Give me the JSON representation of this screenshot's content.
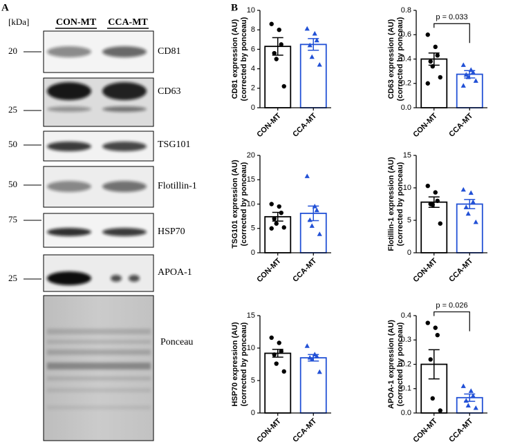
{
  "panel_a": {
    "label": "A",
    "kda": "[kDa]",
    "lanes": [
      "CON-MT",
      "CCA-MT"
    ],
    "blots": [
      {
        "name": "CD81",
        "mw": "20"
      },
      {
        "name": "CD63",
        "mw": "25"
      },
      {
        "name": "TSG101",
        "mw": "50"
      },
      {
        "name": "Flotillin-1",
        "mw": "50"
      },
      {
        "name": "HSP70",
        "mw": "75"
      },
      {
        "name": "APOA-1",
        "mw": "25"
      },
      {
        "name": "Ponceau"
      }
    ]
  },
  "panel_b_label": "B",
  "chart_data": [
    {
      "type": "bar",
      "ylabel": [
        "CD81 expression (AU)",
        "(corrected by ponceau)"
      ],
      "categories": [
        "CON-MT",
        "CCA-MT"
      ],
      "values": [
        6.3,
        6.5
      ],
      "errors": [
        0.9,
        0.6
      ],
      "points": [
        [
          8.6,
          8.0,
          6.5,
          5.6,
          5.0,
          2.2
        ],
        [
          8.1,
          7.6,
          6.9,
          6.4,
          5.2,
          4.4
        ]
      ],
      "colors": [
        "#000000",
        "#2251d6"
      ],
      "markers": [
        "circle",
        "triangle"
      ],
      "ylim": [
        0,
        10
      ],
      "yticks": [
        0,
        2,
        4,
        6,
        8,
        10
      ]
    },
    {
      "type": "bar",
      "ylabel": [
        "CD63 expression (AU)",
        "(corrected by ponceau)"
      ],
      "categories": [
        "CON-MT",
        "CCA-MT"
      ],
      "values": [
        0.4,
        0.275
      ],
      "errors": [
        0.05,
        0.03
      ],
      "points": [
        [
          0.6,
          0.5,
          0.43,
          0.38,
          0.34,
          0.25,
          0.2
        ],
        [
          0.35,
          0.31,
          0.29,
          0.27,
          0.25,
          0.22,
          0.18
        ]
      ],
      "colors": [
        "#000000",
        "#2251d6"
      ],
      "markers": [
        "circle",
        "triangle"
      ],
      "ylim": [
        0,
        0.8
      ],
      "yticks": [
        {
          "value": 0,
          "label": "0.0"
        },
        0.2,
        0.4,
        0.6,
        0.8
      ],
      "annotation": "p = 0.033"
    },
    {
      "type": "bar",
      "ylabel": [
        "TSG101 expression (AU)",
        "(corrected by ponceau)"
      ],
      "categories": [
        "CON-MT",
        "CCA-MT"
      ],
      "values": [
        7.4,
        8.1
      ],
      "errors": [
        0.9,
        1.5
      ],
      "points": [
        [
          10.0,
          9.5,
          8.2,
          7.0,
          6.0,
          5.2,
          5.0
        ],
        [
          15.7,
          9.5,
          8.7,
          6.7,
          5.5,
          3.8
        ]
      ],
      "colors": [
        "#000000",
        "#2251d6"
      ],
      "markers": [
        "circle",
        "triangle"
      ],
      "ylim": [
        0,
        20
      ],
      "yticks": [
        0,
        5,
        10,
        15,
        20
      ]
    },
    {
      "type": "bar",
      "ylabel": [
        "Flotillin-1 expression (AU)",
        "(corrected by ponceau)"
      ],
      "categories": [
        "CON-MT",
        "CCA-MT"
      ],
      "values": [
        7.8,
        7.5
      ],
      "errors": [
        0.8,
        0.7
      ],
      "points": [
        [
          10.3,
          9.3,
          8.0,
          7.5,
          7.4,
          4.5
        ],
        [
          9.7,
          9.2,
          7.8,
          7.0,
          6.0,
          4.7
        ]
      ],
      "colors": [
        "#000000",
        "#2251d6"
      ],
      "markers": [
        "circle",
        "triangle"
      ],
      "ylim": [
        0,
        15
      ],
      "yticks": [
        0,
        5,
        10,
        15
      ]
    },
    {
      "type": "bar",
      "ylabel": [
        "HSP70 expression (AU)",
        "(corrected by ponceau)"
      ],
      "categories": [
        "CON-MT",
        "CCA-MT"
      ],
      "values": [
        9.2,
        8.5
      ],
      "errors": [
        0.6,
        0.5
      ],
      "points": [
        [
          11.6,
          10.8,
          9.5,
          9.0,
          7.6,
          6.4
        ],
        [
          10.3,
          9.0,
          8.7,
          8.5,
          8.2,
          6.3
        ]
      ],
      "colors": [
        "#000000",
        "#2251d6"
      ],
      "markers": [
        "circle",
        "triangle"
      ],
      "ylim": [
        0,
        15
      ],
      "yticks": [
        0,
        5,
        10,
        15
      ]
    },
    {
      "type": "bar",
      "ylabel": [
        "APOA-1 expression (AU)",
        "(corrected by ponceau)"
      ],
      "categories": [
        "CON-MT",
        "CCA-MT"
      ],
      "values": [
        0.2,
        0.063
      ],
      "errors": [
        0.06,
        0.015
      ],
      "points": [
        [
          0.37,
          0.35,
          0.32,
          0.22,
          0.06,
          0.01
        ],
        [
          0.11,
          0.09,
          0.07,
          0.05,
          0.03,
          0.02
        ]
      ],
      "colors": [
        "#000000",
        "#2251d6"
      ],
      "markers": [
        "circle",
        "triangle"
      ],
      "ylim": [
        0,
        0.4
      ],
      "yticks": [
        {
          "value": 0,
          "label": "0.0"
        },
        0.1,
        0.2,
        0.3,
        0.4
      ],
      "annotation": "p = 0.026"
    }
  ]
}
